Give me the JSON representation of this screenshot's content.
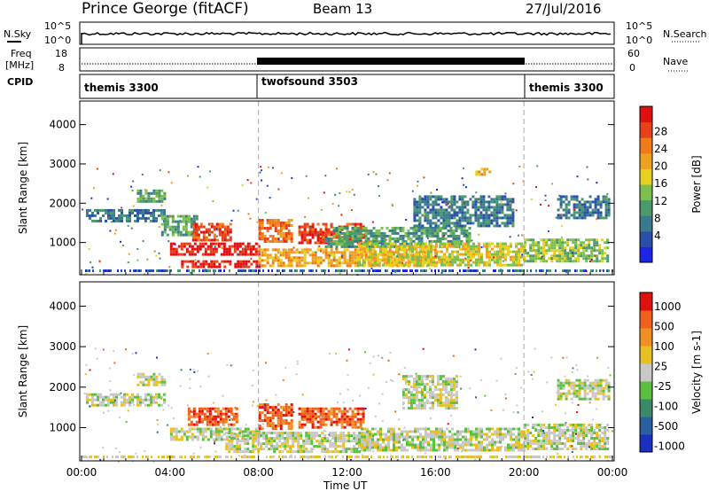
{
  "header": {
    "station": "Prince George (fitACF)",
    "beam": "Beam 13",
    "date": "27/Jul/2016"
  },
  "noise_panel": {
    "left_label": "N.Sky",
    "right_label": "N.Search",
    "scale_top": "10^5",
    "scale_bottom": "10^0"
  },
  "freq_panel": {
    "left_label_line1": "Freq",
    "left_label_line2": "[MHz]",
    "right_label": "Nave",
    "left_ticks": [
      "18",
      "8"
    ],
    "right_ticks": [
      "60",
      "0"
    ]
  },
  "cpid_panel": {
    "label": "CPID",
    "segments": [
      {
        "name": "themis 3300",
        "start_h": 0,
        "end_h": 8
      },
      {
        "name": "twofsound 3503",
        "start_h": 8,
        "end_h": 20
      },
      {
        "name": "themis 3300",
        "start_h": 20,
        "end_h": 24
      }
    ]
  },
  "chart_data": [
    {
      "type": "heatmap",
      "title": "Power",
      "xlabel": "Time UT",
      "ylabel": "Slant Range [km]",
      "xlim_h": [
        0,
        24
      ],
      "ylim": [
        180,
        4600
      ],
      "x_ticks": [
        "00:00",
        "04:00",
        "08:00",
        "12:00",
        "16:00",
        "20:00",
        "00:00"
      ],
      "y_ticks": [
        1000,
        2000,
        3000,
        4000
      ],
      "colorbar": {
        "label": "Power [dB]",
        "ticks": [
          "4",
          "8",
          "12",
          "16",
          "20",
          "24",
          "28"
        ],
        "colors": [
          "#1d24e8",
          "#2a4fa8",
          "#3a7a8f",
          "#4a9a6a",
          "#7ac04a",
          "#e8d020",
          "#f0a020",
          "#f07a18",
          "#e84018",
          "#e01010"
        ]
      },
      "echo_regions": [
        {
          "t0": 0.2,
          "t1": 3.8,
          "r0": 1550,
          "r1": 1850,
          "level": 2
        },
        {
          "t0": 2.5,
          "t1": 3.8,
          "r0": 2050,
          "r1": 2350,
          "level": 3
        },
        {
          "t0": 3.6,
          "t1": 5.2,
          "r0": 1200,
          "r1": 1700,
          "level": 3
        },
        {
          "t0": 4.0,
          "t1": 8.0,
          "r0": 700,
          "r1": 1000,
          "level": 9
        },
        {
          "t0": 5.0,
          "t1": 6.8,
          "r0": 1050,
          "r1": 1500,
          "level": 8
        },
        {
          "t0": 4.5,
          "t1": 8.0,
          "r0": 350,
          "r1": 550,
          "level": 9
        },
        {
          "t0": 8.0,
          "t1": 9.5,
          "r0": 1000,
          "r1": 1600,
          "level": 7
        },
        {
          "t0": 8.0,
          "t1": 16.0,
          "r0": 400,
          "r1": 850,
          "level": 6
        },
        {
          "t0": 9.8,
          "t1": 12.8,
          "r0": 1000,
          "r1": 1500,
          "level": 8
        },
        {
          "t0": 11.0,
          "t1": 17.5,
          "r0": 900,
          "r1": 1400,
          "level": 3
        },
        {
          "t0": 12.5,
          "t1": 20.0,
          "r0": 450,
          "r1": 1000,
          "level": 5
        },
        {
          "t0": 15.0,
          "t1": 19.5,
          "r0": 1400,
          "r1": 2200,
          "level": 2
        },
        {
          "t0": 17.8,
          "t1": 18.5,
          "r0": 2700,
          "r1": 2900,
          "level": 6
        },
        {
          "t0": 20.0,
          "t1": 23.8,
          "r0": 500,
          "r1": 1100,
          "level": 4
        },
        {
          "t0": 21.5,
          "t1": 23.8,
          "r0": 1600,
          "r1": 2200,
          "level": 2
        }
      ]
    },
    {
      "type": "heatmap",
      "title": "Velocity",
      "xlabel": "Time UT",
      "ylabel": "Slant Range [km]",
      "xlim_h": [
        0,
        24
      ],
      "ylim": [
        180,
        4600
      ],
      "x_ticks": [
        "00:00",
        "04:00",
        "08:00",
        "12:00",
        "16:00",
        "20:00",
        "00:00"
      ],
      "y_ticks": [
        1000,
        2000,
        3000,
        4000
      ],
      "colorbar": {
        "label": "Velocity [m s-1]",
        "ticks": [
          "1000",
          "500",
          "100",
          "25",
          "-25",
          "-100",
          "-500",
          "-1000"
        ],
        "colors": [
          "#1a30c0",
          "#2a60a0",
          "#3a8a6a",
          "#5ac040",
          "#c8c8c8",
          "#e8c020",
          "#f09020",
          "#f06018",
          "#e01010"
        ]
      },
      "echo_regions": [
        {
          "t0": 0.2,
          "t1": 3.8,
          "r0": 1550,
          "r1": 1850,
          "level": 4
        },
        {
          "t0": 2.5,
          "t1": 3.8,
          "r0": 2050,
          "r1": 2350,
          "level": 4
        },
        {
          "t0": 4.0,
          "t1": 8.0,
          "r0": 700,
          "r1": 1000,
          "level": 4
        },
        {
          "t0": 4.8,
          "t1": 7.0,
          "r0": 1050,
          "r1": 1500,
          "level": 7
        },
        {
          "t0": 8.0,
          "t1": 9.5,
          "r0": 1000,
          "r1": 1600,
          "level": 7
        },
        {
          "t0": 9.8,
          "t1": 12.8,
          "r0": 1000,
          "r1": 1500,
          "level": 7
        },
        {
          "t0": 6.5,
          "t1": 13.0,
          "r0": 400,
          "r1": 900,
          "level": 4
        },
        {
          "t0": 12.5,
          "t1": 20.0,
          "r0": 450,
          "r1": 1000,
          "level": 4
        },
        {
          "t0": 14.5,
          "t1": 17.0,
          "r0": 1500,
          "r1": 2300,
          "level": 4
        },
        {
          "t0": 20.0,
          "t1": 23.8,
          "r0": 500,
          "r1": 1100,
          "level": 4
        },
        {
          "t0": 21.5,
          "t1": 23.8,
          "r0": 1700,
          "r1": 2200,
          "level": 4
        }
      ]
    }
  ]
}
